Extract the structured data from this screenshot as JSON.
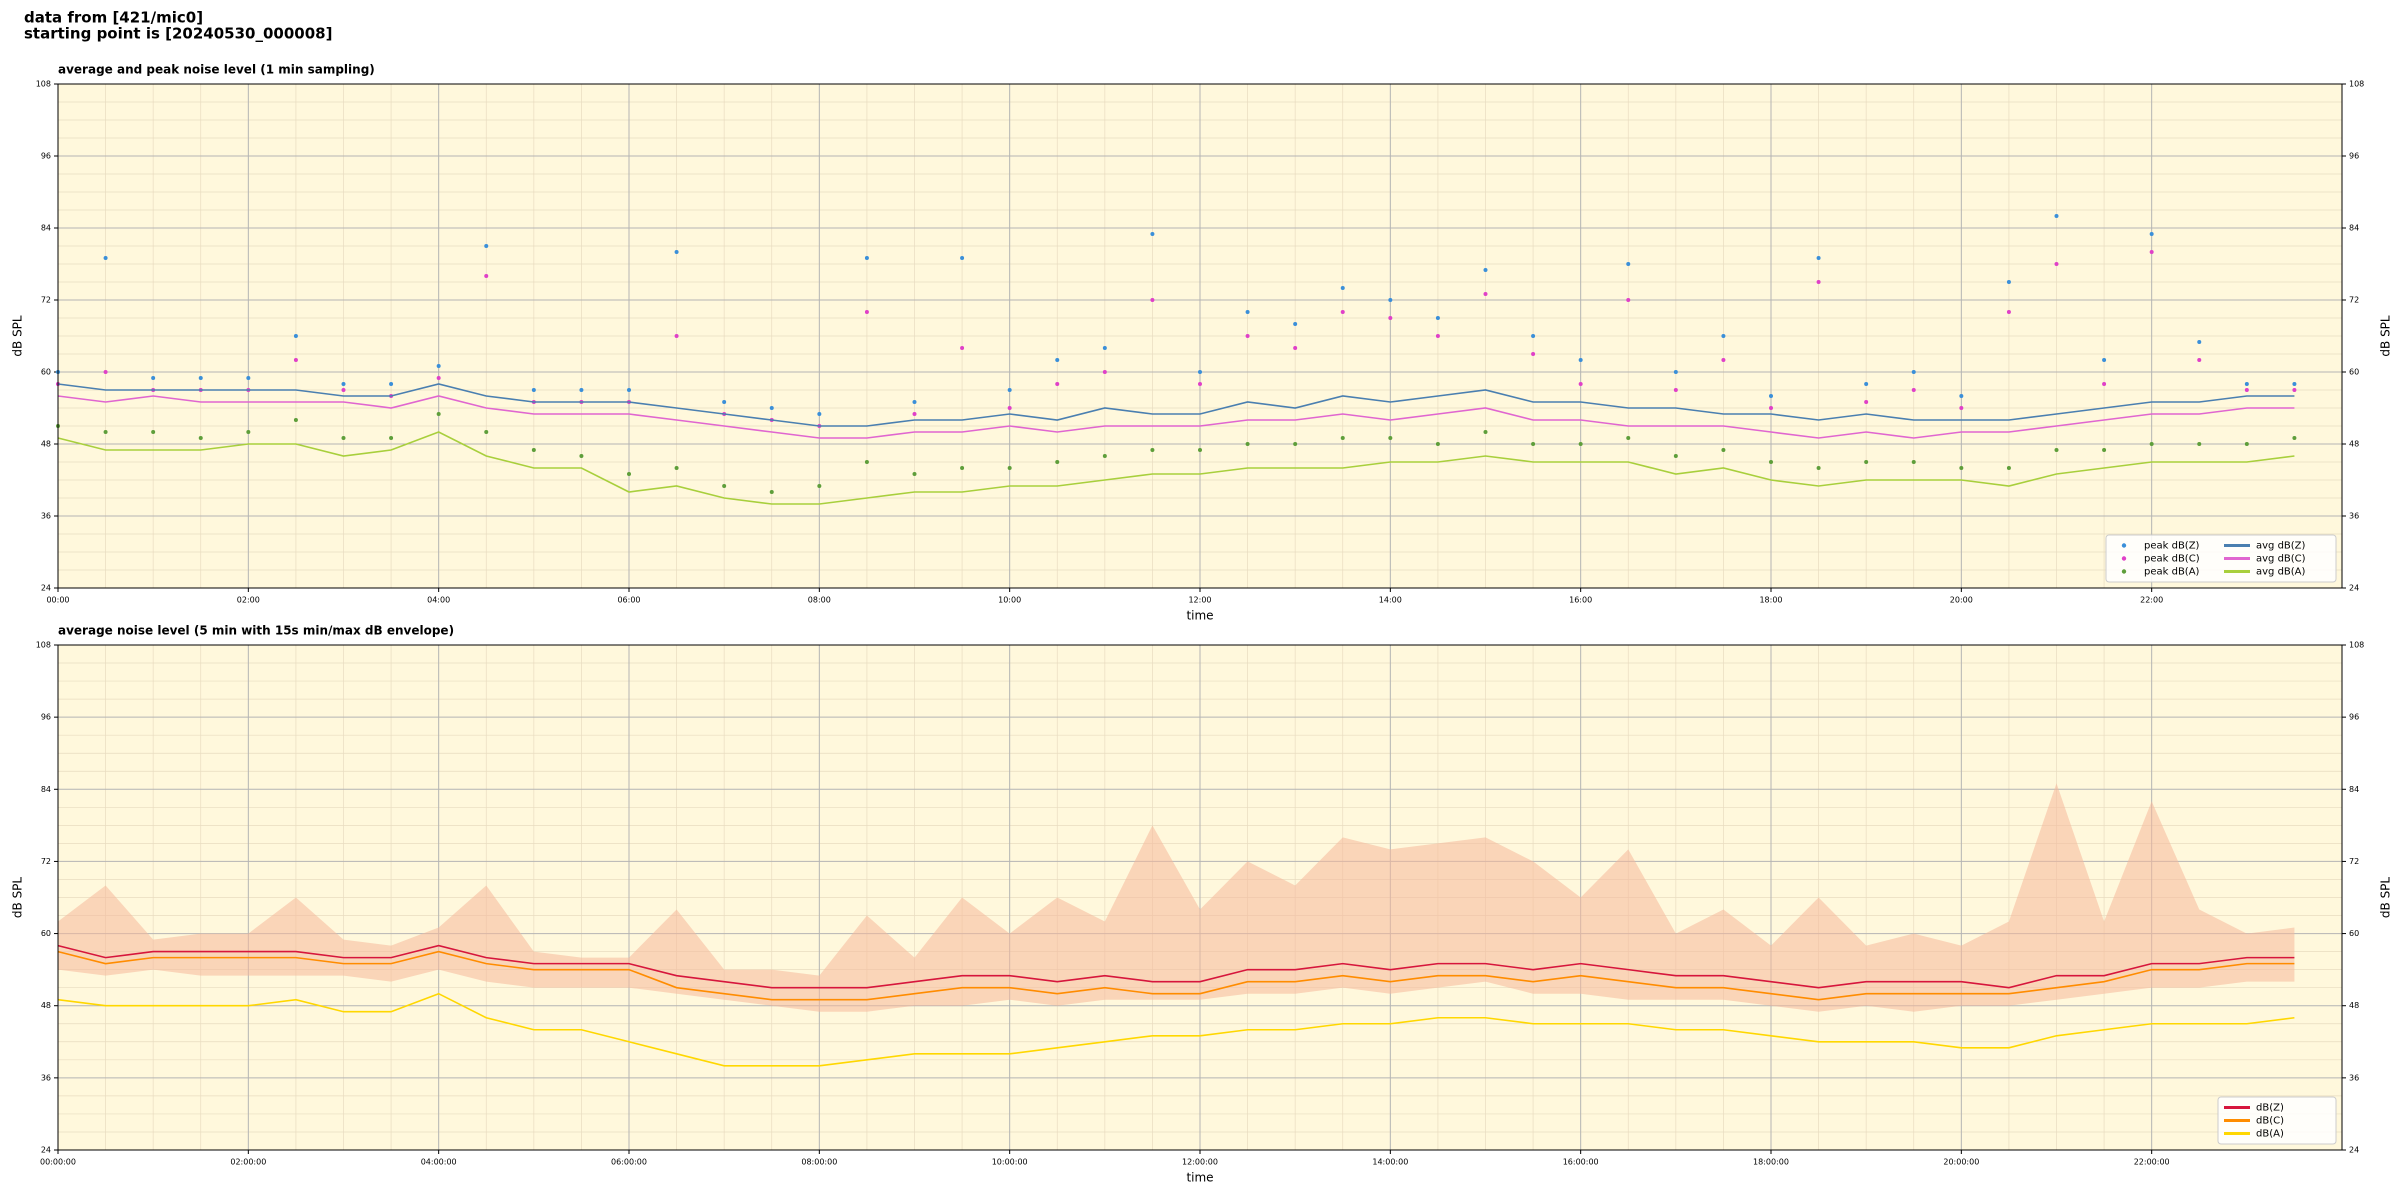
{
  "header": {
    "line1": "data from [421/mic0]",
    "line2": "starting point is [20240530_000008]"
  },
  "chart_data": [
    {
      "type": "line",
      "title": "average and peak noise level (1 min sampling)",
      "xlabel": "time",
      "ylabel": "dB SPL",
      "background": "#fff8dc",
      "grid": true,
      "legend": "lower right",
      "legend_columns": 2,
      "xlim": [
        0,
        24
      ],
      "ylim": [
        24,
        108
      ],
      "yticks": [
        24,
        36,
        48,
        60,
        72,
        84,
        96,
        108
      ],
      "xticks": [
        {
          "value": 0,
          "label": "00:00"
        },
        {
          "value": 2,
          "label": "02:00"
        },
        {
          "value": 4,
          "label": "04:00"
        },
        {
          "value": 6,
          "label": "06:00"
        },
        {
          "value": 8,
          "label": "08:00"
        },
        {
          "value": 10,
          "label": "10:00"
        },
        {
          "value": 12,
          "label": "12:00"
        },
        {
          "value": 14,
          "label": "14:00"
        },
        {
          "value": 16,
          "label": "16:00"
        },
        {
          "value": 18,
          "label": "18:00"
        },
        {
          "value": 20,
          "label": "20:00"
        },
        {
          "value": 22,
          "label": "22:00"
        }
      ],
      "x": [
        0,
        0.5,
        1,
        1.5,
        2,
        2.5,
        3,
        3.5,
        4,
        4.5,
        5,
        5.5,
        6,
        6.5,
        7,
        7.5,
        8,
        8.5,
        9,
        9.5,
        10,
        10.5,
        11,
        11.5,
        12,
        12.5,
        13,
        13.5,
        14,
        14.5,
        15,
        15.5,
        16,
        16.5,
        17,
        17.5,
        18,
        18.5,
        19,
        19.5,
        20,
        20.5,
        21,
        21.5,
        22,
        22.5,
        23,
        23.5
      ],
      "series": [
        {
          "name": "peak dB(Z)",
          "style": "markers",
          "color": "#3a8fd9",
          "values": [
            60,
            79,
            59,
            59,
            59,
            66,
            58,
            58,
            61,
            81,
            57,
            57,
            57,
            80,
            55,
            54,
            53,
            79,
            55,
            79,
            57,
            62,
            64,
            83,
            60,
            70,
            68,
            74,
            72,
            69,
            77,
            66,
            62,
            78,
            60,
            66,
            56,
            79,
            58,
            60,
            56,
            75,
            86,
            62,
            83,
            65,
            58,
            58
          ]
        },
        {
          "name": "peak dB(C)",
          "style": "markers",
          "color": "#e040c8",
          "values": [
            58,
            60,
            57,
            57,
            57,
            62,
            57,
            56,
            59,
            76,
            55,
            55,
            55,
            66,
            53,
            52,
            51,
            70,
            53,
            64,
            54,
            58,
            60,
            72,
            58,
            66,
            64,
            70,
            69,
            66,
            73,
            63,
            58,
            72,
            57,
            62,
            54,
            75,
            55,
            57,
            54,
            70,
            78,
            58,
            80,
            62,
            57,
            57
          ]
        },
        {
          "name": "peak dB(A)",
          "style": "markers",
          "color": "#5e9e3a",
          "values": [
            51,
            50,
            50,
            49,
            50,
            52,
            49,
            49,
            53,
            50,
            47,
            46,
            43,
            44,
            41,
            40,
            41,
            45,
            43,
            44,
            44,
            45,
            46,
            47,
            47,
            48,
            48,
            49,
            49,
            48,
            50,
            48,
            48,
            49,
            46,
            47,
            45,
            44,
            45,
            45,
            44,
            44,
            47,
            47,
            48,
            48,
            48,
            49
          ]
        },
        {
          "name": "avg dB(Z)",
          "style": "line",
          "color": "#4a7fb0",
          "values": [
            58,
            57,
            57,
            57,
            57,
            57,
            56,
            56,
            58,
            56,
            55,
            55,
            55,
            54,
            53,
            52,
            51,
            51,
            52,
            52,
            53,
            52,
            54,
            53,
            53,
            55,
            54,
            56,
            55,
            56,
            57,
            55,
            55,
            54,
            54,
            53,
            53,
            52,
            53,
            52,
            52,
            52,
            53,
            54,
            55,
            55,
            56,
            56
          ]
        },
        {
          "name": "avg dB(C)",
          "style": "line",
          "color": "#e066d0",
          "values": [
            56,
            55,
            56,
            55,
            55,
            55,
            55,
            54,
            56,
            54,
            53,
            53,
            53,
            52,
            51,
            50,
            49,
            49,
            50,
            50,
            51,
            50,
            51,
            51,
            51,
            52,
            52,
            53,
            52,
            53,
            54,
            52,
            52,
            51,
            51,
            51,
            50,
            49,
            50,
            49,
            50,
            50,
            51,
            52,
            53,
            53,
            54,
            54
          ]
        },
        {
          "name": "avg dB(A)",
          "style": "line",
          "color": "#a8cf3c",
          "values": [
            49,
            47,
            47,
            47,
            48,
            48,
            46,
            47,
            50,
            46,
            44,
            44,
            40,
            41,
            39,
            38,
            38,
            39,
            40,
            40,
            41,
            41,
            42,
            43,
            43,
            44,
            44,
            44,
            45,
            45,
            46,
            45,
            45,
            45,
            43,
            44,
            42,
            41,
            42,
            42,
            42,
            41,
            43,
            44,
            45,
            45,
            45,
            46
          ]
        }
      ]
    },
    {
      "type": "line",
      "title": "average noise level (5 min with 15s min/max dB envelope)",
      "xlabel": "time",
      "ylabel": "dB SPL",
      "background": "#fff8dc",
      "grid": true,
      "legend": "lower right",
      "legend_columns": 1,
      "xlim": [
        0,
        24
      ],
      "ylim": [
        24,
        108
      ],
      "yticks": [
        24,
        36,
        48,
        60,
        72,
        84,
        96,
        108
      ],
      "xticks": [
        {
          "value": 0,
          "label": "00:00:00"
        },
        {
          "value": 2,
          "label": "02:00:00"
        },
        {
          "value": 4,
          "label": "04:00:00"
        },
        {
          "value": 6,
          "label": "06:00:00"
        },
        {
          "value": 8,
          "label": "08:00:00"
        },
        {
          "value": 10,
          "label": "10:00:00"
        },
        {
          "value": 12,
          "label": "12:00:00"
        },
        {
          "value": 14,
          "label": "14:00:00"
        },
        {
          "value": 16,
          "label": "16:00:00"
        },
        {
          "value": 18,
          "label": "18:00:00"
        },
        {
          "value": 20,
          "label": "20:00:00"
        },
        {
          "value": 22,
          "label": "22:00:00"
        }
      ],
      "x": [
        0,
        0.5,
        1,
        1.5,
        2,
        2.5,
        3,
        3.5,
        4,
        4.5,
        5,
        5.5,
        6,
        6.5,
        7,
        7.5,
        8,
        8.5,
        9,
        9.5,
        10,
        10.5,
        11,
        11.5,
        12,
        12.5,
        13,
        13.5,
        14,
        14.5,
        15,
        15.5,
        16,
        16.5,
        17,
        17.5,
        18,
        18.5,
        19,
        19.5,
        20,
        20.5,
        21,
        21.5,
        22,
        22.5,
        23,
        23.5
      ],
      "envelope": {
        "color": "#f6b89a",
        "high": [
          62,
          68,
          59,
          60,
          60,
          66,
          59,
          58,
          61,
          68,
          57,
          56,
          56,
          64,
          54,
          54,
          53,
          63,
          56,
          66,
          60,
          66,
          62,
          78,
          64,
          72,
          68,
          76,
          74,
          75,
          76,
          72,
          66,
          74,
          60,
          64,
          58,
          66,
          58,
          60,
          58,
          62,
          85,
          62,
          82,
          64,
          60,
          61
        ],
        "low": [
          54,
          53,
          54,
          53,
          53,
          53,
          53,
          52,
          54,
          52,
          51,
          51,
          51,
          50,
          49,
          48,
          47,
          47,
          48,
          48,
          49,
          48,
          49,
          49,
          49,
          50,
          50,
          51,
          50,
          51,
          52,
          50,
          50,
          49,
          49,
          49,
          48,
          47,
          48,
          47,
          48,
          48,
          49,
          50,
          51,
          51,
          52,
          52
        ]
      },
      "series": [
        {
          "name": "dB(Z)",
          "style": "line",
          "color": "#d6163c",
          "values": [
            58,
            56,
            57,
            57,
            57,
            57,
            56,
            56,
            58,
            56,
            55,
            55,
            55,
            53,
            52,
            51,
            51,
            51,
            52,
            53,
            53,
            52,
            53,
            52,
            52,
            54,
            54,
            55,
            54,
            55,
            55,
            54,
            55,
            54,
            53,
            53,
            52,
            51,
            52,
            52,
            52,
            51,
            53,
            53,
            55,
            55,
            56,
            56
          ]
        },
        {
          "name": "dB(C)",
          "style": "line",
          "color": "#ff8c00",
          "values": [
            57,
            55,
            56,
            56,
            56,
            56,
            55,
            55,
            57,
            55,
            54,
            54,
            54,
            51,
            50,
            49,
            49,
            49,
            50,
            51,
            51,
            50,
            51,
            50,
            50,
            52,
            52,
            53,
            52,
            53,
            53,
            52,
            53,
            52,
            51,
            51,
            50,
            49,
            50,
            50,
            50,
            50,
            51,
            52,
            54,
            54,
            55,
            55
          ]
        },
        {
          "name": "dB(A)",
          "style": "line",
          "color": "#ffd700",
          "values": [
            49,
            48,
            48,
            48,
            48,
            49,
            47,
            47,
            50,
            46,
            44,
            44,
            42,
            40,
            38,
            38,
            38,
            39,
            40,
            40,
            40,
            41,
            42,
            43,
            43,
            44,
            44,
            45,
            45,
            46,
            46,
            45,
            45,
            45,
            44,
            44,
            43,
            42,
            42,
            42,
            41,
            41,
            43,
            44,
            45,
            45,
            45,
            46
          ]
        }
      ]
    }
  ]
}
